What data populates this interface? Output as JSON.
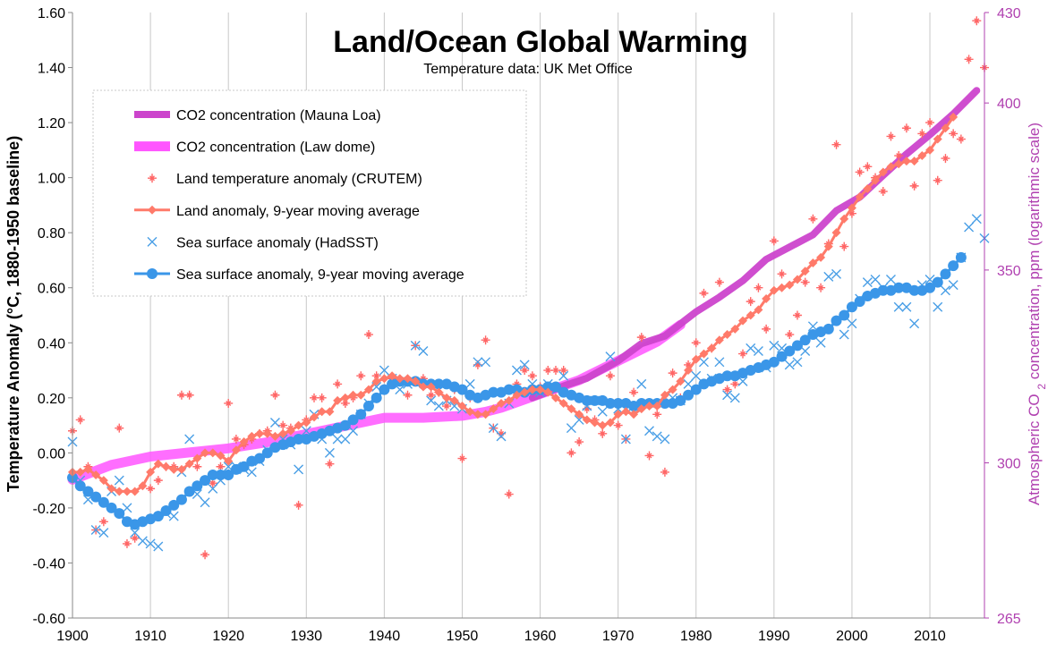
{
  "chart_data": {
    "type": "scatter",
    "title": "Land/Ocean Global Warming",
    "subtitle": "Temperature data: UK Met Office",
    "ylabel": "Temperature Anomaly (°C, 1880-1950 baseline)",
    "y2label": "Atmospheric CO2 concentration, ppm (logarithmic scale)",
    "xlim": [
      1900,
      2017
    ],
    "ylim": [
      -0.6,
      1.6
    ],
    "y2lim": [
      265,
      430
    ],
    "y2scale": "log",
    "grid": "vertical",
    "legend_position": "top-left",
    "x_ticks": [
      "1900",
      "1910",
      "1920",
      "1930",
      "1940",
      "1950",
      "1960",
      "1970",
      "1980",
      "1990",
      "2000",
      "2010"
    ],
    "y_ticks": [
      "-0.60",
      "-0.40",
      "-0.20",
      "0.00",
      "0.20",
      "0.40",
      "0.60",
      "0.80",
      "1.00",
      "1.20",
      "1.40",
      "1.60"
    ],
    "y2_ticks": [
      "265",
      "300",
      "350",
      "400",
      "430"
    ],
    "colors": {
      "co2_mauna_loa": "#cc44cc",
      "co2_law_dome": "#ff55ff",
      "land": "#ff6666",
      "land_avg": "#ff7a6a",
      "sea": "#4a9fe6",
      "sea_avg": "#3a96e8",
      "y2_axis": "#b040b0"
    },
    "series": [
      {
        "name": "CO2 concentration (Mauna Loa)",
        "kind": "line-thick",
        "axis": "y2",
        "x": [
          1959,
          1963,
          1966,
          1970,
          1973,
          1976,
          1980,
          1983,
          1986,
          1989,
          1992,
          1995,
          1998,
          2001,
          2004,
          2007,
          2010,
          2013,
          2016
        ],
        "values": [
          316,
          319,
          321,
          325.5,
          330,
          332,
          338.5,
          342.5,
          347,
          353,
          356.5,
          360,
          367,
          371,
          377.5,
          384,
          390,
          396.5,
          404
        ]
      },
      {
        "name": "CO2 concentration (Law dome)",
        "kind": "line-thick",
        "axis": "y2",
        "x": [
          1900,
          1905,
          1910,
          1915,
          1920,
          1925,
          1930,
          1935,
          1940,
          1945,
          1950,
          1953,
          1955,
          1960,
          1965,
          1970,
          1975,
          1978
        ],
        "values": [
          296,
          299.5,
          301.5,
          302.5,
          303.5,
          305,
          307,
          309,
          311,
          311,
          311.5,
          312.5,
          313.5,
          317,
          320.5,
          325.5,
          330.5,
          335
        ]
      },
      {
        "name": "Land temperature anomaly (CRUTEM)",
        "kind": "markers-plus",
        "axis": "y",
        "x": [
          1900,
          1901,
          1902,
          1903,
          1904,
          1905,
          1906,
          1907,
          1908,
          1909,
          1910,
          1911,
          1912,
          1913,
          1914,
          1915,
          1916,
          1917,
          1918,
          1919,
          1920,
          1921,
          1922,
          1923,
          1924,
          1925,
          1926,
          1927,
          1928,
          1929,
          1930,
          1931,
          1932,
          1933,
          1934,
          1935,
          1936,
          1937,
          1938,
          1939,
          1940,
          1941,
          1942,
          1943,
          1944,
          1945,
          1946,
          1947,
          1948,
          1949,
          1950,
          1951,
          1952,
          1953,
          1954,
          1955,
          1956,
          1957,
          1958,
          1959,
          1960,
          1961,
          1962,
          1963,
          1964,
          1965,
          1966,
          1967,
          1968,
          1969,
          1970,
          1971,
          1972,
          1973,
          1974,
          1975,
          1976,
          1977,
          1978,
          1979,
          1980,
          1981,
          1982,
          1983,
          1984,
          1985,
          1986,
          1987,
          1988,
          1989,
          1990,
          1991,
          1992,
          1993,
          1994,
          1995,
          1996,
          1997,
          1998,
          1999,
          2000,
          2001,
          2002,
          2003,
          2004,
          2005,
          2006,
          2007,
          2008,
          2009,
          2010,
          2011,
          2012,
          2013,
          2014,
          2015,
          2016,
          2017
        ],
        "values": [
          0.08,
          0.12,
          -0.05,
          -0.28,
          -0.25,
          -0.2,
          0.09,
          -0.33,
          -0.31,
          -0.25,
          -0.13,
          -0.1,
          -0.05,
          -0.05,
          0.21,
          0.21,
          -0.05,
          -0.37,
          -0.11,
          -0.05,
          0.18,
          0.05,
          0.03,
          0.05,
          0.07,
          0.08,
          0.21,
          0.1,
          0.09,
          -0.19,
          0.12,
          0.2,
          0.2,
          -0.04,
          0.25,
          0.18,
          0.2,
          0.28,
          0.43,
          0.28,
          0.23,
          0.27,
          0.26,
          0.21,
          0.39,
          0.27,
          0.21,
          0.22,
          0.17,
          0.23,
          -0.02,
          0.2,
          0.32,
          0.41,
          0.09,
          0.07,
          -0.15,
          0.25,
          0.3,
          0.28,
          0.24,
          0.3,
          0.3,
          0.3,
          0.0,
          0.04,
          0.16,
          0.12,
          0.07,
          0.28,
          0.1,
          0.05,
          0.22,
          0.42,
          -0.01,
          0.14,
          -0.07,
          0.29,
          0.2,
          0.32,
          0.4,
          0.58,
          0.38,
          0.62,
          0.23,
          0.25,
          0.36,
          0.55,
          0.6,
          0.45,
          0.77,
          0.65,
          0.43,
          0.5,
          0.62,
          0.85,
          0.6,
          0.76,
          1.12,
          0.75,
          0.87,
          1.02,
          1.04,
          1.0,
          0.95,
          1.15,
          1.08,
          1.18,
          0.97,
          1.16,
          1.2,
          0.99,
          1.07,
          1.16,
          1.14,
          1.43,
          1.57,
          1.4
        ]
      },
      {
        "name": "Land anomaly, 9-year moving average",
        "kind": "line-diamond",
        "axis": "y",
        "x": [
          1900,
          1901,
          1902,
          1903,
          1904,
          1905,
          1906,
          1907,
          1908,
          1909,
          1910,
          1911,
          1912,
          1913,
          1914,
          1915,
          1916,
          1917,
          1918,
          1919,
          1920,
          1921,
          1922,
          1923,
          1924,
          1925,
          1926,
          1927,
          1928,
          1929,
          1930,
          1931,
          1932,
          1933,
          1934,
          1935,
          1936,
          1937,
          1938,
          1939,
          1940,
          1941,
          1942,
          1943,
          1944,
          1945,
          1946,
          1947,
          1948,
          1949,
          1950,
          1951,
          1952,
          1953,
          1954,
          1955,
          1956,
          1957,
          1958,
          1959,
          1960,
          1961,
          1962,
          1963,
          1964,
          1965,
          1966,
          1967,
          1968,
          1969,
          1970,
          1971,
          1972,
          1973,
          1974,
          1975,
          1976,
          1977,
          1978,
          1979,
          1980,
          1981,
          1982,
          1983,
          1984,
          1985,
          1986,
          1987,
          1988,
          1989,
          1990,
          1991,
          1992,
          1993,
          1994,
          1995,
          1996,
          1997,
          1998,
          1999,
          2000,
          2001,
          2002,
          2003,
          2004,
          2005,
          2006,
          2007,
          2008,
          2009,
          2010,
          2011,
          2012,
          2013
        ],
        "values": [
          -0.07,
          -0.07,
          -0.06,
          -0.08,
          -0.1,
          -0.13,
          -0.14,
          -0.14,
          -0.14,
          -0.12,
          -0.07,
          -0.04,
          -0.05,
          -0.06,
          -0.06,
          -0.04,
          -0.02,
          0.0,
          0.0,
          -0.01,
          -0.03,
          0.01,
          0.04,
          0.06,
          0.07,
          0.07,
          0.06,
          0.07,
          0.08,
          0.1,
          0.11,
          0.13,
          0.15,
          0.15,
          0.19,
          0.2,
          0.21,
          0.21,
          0.23,
          0.26,
          0.27,
          0.28,
          0.27,
          0.27,
          0.26,
          0.24,
          0.24,
          0.22,
          0.2,
          0.19,
          0.17,
          0.15,
          0.14,
          0.14,
          0.16,
          0.18,
          0.19,
          0.21,
          0.22,
          0.23,
          0.23,
          0.22,
          0.2,
          0.18,
          0.16,
          0.14,
          0.12,
          0.11,
          0.1,
          0.11,
          0.14,
          0.15,
          0.14,
          0.16,
          0.17,
          0.17,
          0.21,
          0.23,
          0.26,
          0.3,
          0.34,
          0.36,
          0.38,
          0.41,
          0.43,
          0.45,
          0.48,
          0.5,
          0.52,
          0.56,
          0.59,
          0.6,
          0.61,
          0.63,
          0.66,
          0.69,
          0.71,
          0.75,
          0.8,
          0.85,
          0.89,
          0.93,
          0.96,
          0.99,
          1.02,
          1.04,
          1.05,
          1.06,
          1.06,
          1.08,
          1.1,
          1.14,
          1.18,
          1.22
        ]
      },
      {
        "name": "Sea surface anomaly (HadSST)",
        "kind": "markers-x",
        "axis": "y",
        "x": [
          1900,
          1901,
          1902,
          1903,
          1904,
          1905,
          1906,
          1907,
          1908,
          1909,
          1910,
          1911,
          1912,
          1913,
          1914,
          1915,
          1916,
          1917,
          1918,
          1919,
          1920,
          1921,
          1922,
          1923,
          1924,
          1925,
          1926,
          1927,
          1928,
          1929,
          1930,
          1931,
          1932,
          1933,
          1934,
          1935,
          1936,
          1937,
          1938,
          1939,
          1940,
          1941,
          1942,
          1943,
          1944,
          1945,
          1946,
          1947,
          1948,
          1949,
          1950,
          1951,
          1952,
          1953,
          1954,
          1955,
          1956,
          1957,
          1958,
          1959,
          1960,
          1961,
          1962,
          1963,
          1964,
          1965,
          1966,
          1967,
          1968,
          1969,
          1970,
          1971,
          1972,
          1973,
          1974,
          1975,
          1976,
          1977,
          1978,
          1979,
          1980,
          1981,
          1982,
          1983,
          1984,
          1985,
          1986,
          1987,
          1988,
          1989,
          1990,
          1991,
          1992,
          1993,
          1994,
          1995,
          1996,
          1997,
          1998,
          1999,
          2000,
          2001,
          2002,
          2003,
          2004,
          2005,
          2006,
          2007,
          2008,
          2009,
          2010,
          2011,
          2012,
          2013,
          2014,
          2015,
          2016,
          2017
        ],
        "values": [
          0.04,
          -0.1,
          -0.17,
          -0.28,
          -0.29,
          -0.14,
          -0.1,
          -0.2,
          -0.29,
          -0.32,
          -0.33,
          -0.34,
          -0.22,
          -0.23,
          -0.07,
          0.05,
          -0.15,
          -0.18,
          -0.13,
          -0.1,
          -0.05,
          -0.05,
          -0.06,
          -0.07,
          -0.03,
          0.01,
          0.11,
          0.05,
          0.03,
          -0.06,
          0.08,
          0.14,
          0.05,
          0.0,
          0.05,
          0.05,
          0.08,
          0.14,
          0.18,
          0.24,
          0.3,
          0.27,
          0.23,
          0.25,
          0.39,
          0.37,
          0.19,
          0.17,
          0.19,
          0.17,
          0.16,
          0.25,
          0.33,
          0.33,
          0.09,
          0.06,
          0.18,
          0.3,
          0.32,
          0.25,
          0.22,
          0.25,
          0.23,
          0.28,
          0.09,
          0.12,
          0.17,
          0.19,
          0.15,
          0.35,
          0.16,
          0.05,
          0.17,
          0.25,
          0.08,
          0.06,
          0.05,
          0.2,
          0.19,
          0.25,
          0.28,
          0.33,
          0.27,
          0.33,
          0.21,
          0.2,
          0.26,
          0.38,
          0.37,
          0.31,
          0.39,
          0.38,
          0.32,
          0.33,
          0.37,
          0.46,
          0.4,
          0.64,
          0.65,
          0.43,
          0.47,
          0.56,
          0.62,
          0.63,
          0.6,
          0.63,
          0.53,
          0.53,
          0.47,
          0.61,
          0.63,
          0.53,
          0.59,
          0.61,
          0.71,
          0.82,
          0.85,
          0.78
        ]
      },
      {
        "name": "Sea surface anomaly, 9-year moving average",
        "kind": "line-circle",
        "axis": "y",
        "x": [
          1900,
          1901,
          1902,
          1903,
          1904,
          1905,
          1906,
          1907,
          1908,
          1909,
          1910,
          1911,
          1912,
          1913,
          1914,
          1915,
          1916,
          1917,
          1918,
          1919,
          1920,
          1921,
          1922,
          1923,
          1924,
          1925,
          1926,
          1927,
          1928,
          1929,
          1930,
          1931,
          1932,
          1933,
          1934,
          1935,
          1936,
          1937,
          1938,
          1939,
          1940,
          1941,
          1942,
          1943,
          1944,
          1945,
          1946,
          1947,
          1948,
          1949,
          1950,
          1951,
          1952,
          1953,
          1954,
          1955,
          1956,
          1957,
          1958,
          1959,
          1960,
          1961,
          1962,
          1963,
          1964,
          1965,
          1966,
          1967,
          1968,
          1969,
          1970,
          1971,
          1972,
          1973,
          1974,
          1975,
          1976,
          1977,
          1978,
          1979,
          1980,
          1981,
          1982,
          1983,
          1984,
          1985,
          1986,
          1987,
          1988,
          1989,
          1990,
          1991,
          1992,
          1993,
          1994,
          1995,
          1996,
          1997,
          1998,
          1999,
          2000,
          2001,
          2002,
          2003,
          2004,
          2005,
          2006,
          2007,
          2008,
          2009,
          2010,
          2011,
          2012,
          2013,
          2014
        ],
        "values": [
          -0.09,
          -0.12,
          -0.14,
          -0.16,
          -0.18,
          -0.2,
          -0.22,
          -0.25,
          -0.26,
          -0.25,
          -0.24,
          -0.23,
          -0.21,
          -0.19,
          -0.17,
          -0.14,
          -0.12,
          -0.1,
          -0.08,
          -0.08,
          -0.08,
          -0.06,
          -0.05,
          -0.03,
          -0.02,
          0.0,
          0.02,
          0.03,
          0.04,
          0.05,
          0.05,
          0.06,
          0.07,
          0.08,
          0.09,
          0.1,
          0.12,
          0.14,
          0.17,
          0.2,
          0.23,
          0.25,
          0.26,
          0.26,
          0.26,
          0.25,
          0.25,
          0.25,
          0.25,
          0.24,
          0.23,
          0.21,
          0.2,
          0.21,
          0.22,
          0.22,
          0.23,
          0.23,
          0.22,
          0.23,
          0.23,
          0.24,
          0.24,
          0.22,
          0.21,
          0.2,
          0.19,
          0.19,
          0.19,
          0.18,
          0.18,
          0.18,
          0.17,
          0.18,
          0.18,
          0.18,
          0.18,
          0.18,
          0.19,
          0.21,
          0.23,
          0.25,
          0.26,
          0.27,
          0.28,
          0.28,
          0.29,
          0.3,
          0.31,
          0.32,
          0.33,
          0.35,
          0.37,
          0.39,
          0.41,
          0.43,
          0.44,
          0.45,
          0.48,
          0.5,
          0.53,
          0.55,
          0.57,
          0.58,
          0.59,
          0.59,
          0.6,
          0.6,
          0.59,
          0.59,
          0.6,
          0.62,
          0.65,
          0.68,
          0.71
        ]
      }
    ]
  }
}
